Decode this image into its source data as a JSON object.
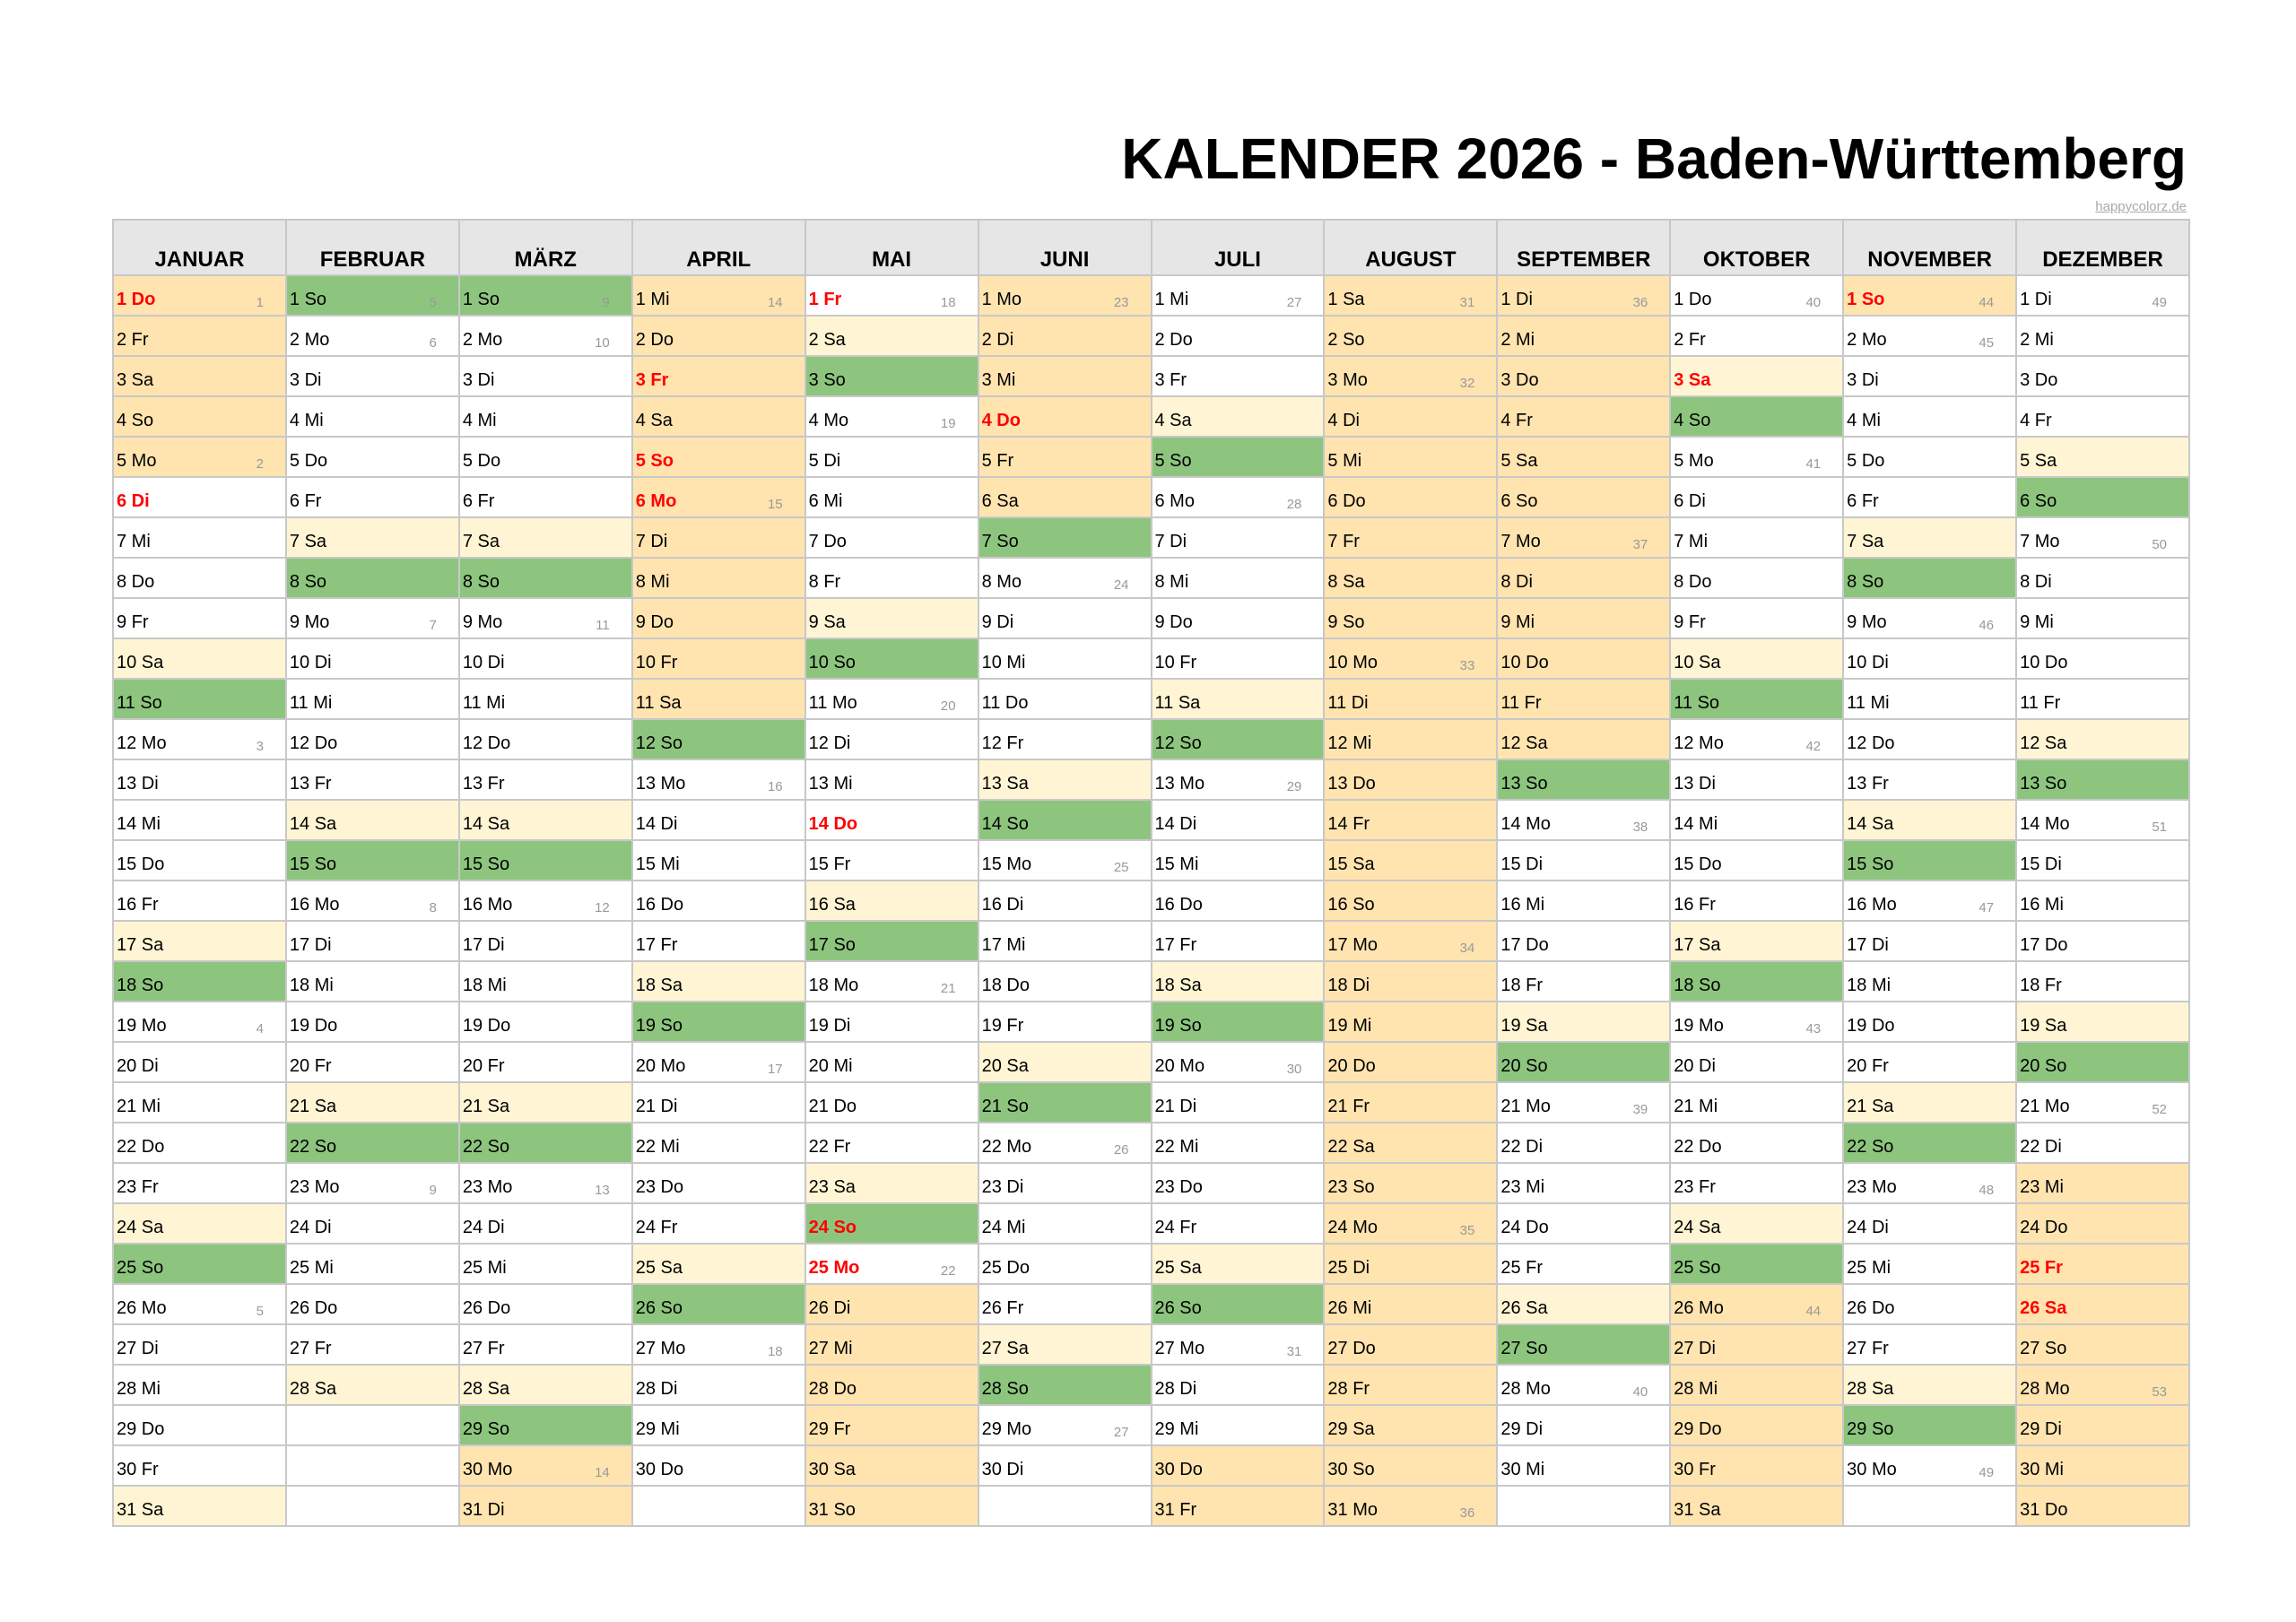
{
  "title": "KALENDER 2026 - Baden-Württemberg",
  "credit": "happycolorz.de",
  "colors": {
    "saturday": "#fff5d4",
    "sunday": "#8dc57e",
    "school_holiday": "#ffe4b0",
    "public_holiday_text": "#ff0000",
    "header": "#e6e6e6"
  },
  "months": [
    {
      "name": "JANUAR",
      "days": [
        "1 Do",
        "2 Fr",
        "3 Sa",
        "4 So",
        "5 Mo",
        "6 Di",
        "7 Mi",
        "8 Do",
        "9 Fr",
        "10 Sa",
        "11 So",
        "12 Mo",
        "13 Di",
        "14 Mi",
        "15 Do",
        "16 Fr",
        "17 Sa",
        "18 So",
        "19 Mo",
        "20 Di",
        "21 Mi",
        "22 Do",
        "23 Fr",
        "24 Sa",
        "25 So",
        "26 Mo",
        "27 Di",
        "28 Mi",
        "29 Do",
        "30 Fr",
        "31 Sa"
      ],
      "week_numbers": {
        "1": "1",
        "5": "2",
        "12": "3",
        "19": "4",
        "26": "5"
      },
      "public_holidays": [
        1,
        6
      ],
      "school_holidays": [
        1,
        2,
        3,
        4,
        5
      ]
    },
    {
      "name": "FEBRUAR",
      "days": [
        "1 So",
        "2 Mo",
        "3 Di",
        "4 Mi",
        "5 Do",
        "6 Fr",
        "7 Sa",
        "8 So",
        "9 Mo",
        "10 Di",
        "11 Mi",
        "12 Do",
        "13 Fr",
        "14 Sa",
        "15 So",
        "16 Mo",
        "17 Di",
        "18 Mi",
        "19 Do",
        "20 Fr",
        "21 Sa",
        "22 So",
        "23 Mo",
        "24 Di",
        "25 Mi",
        "26 Do",
        "27 Fr",
        "28 Sa"
      ],
      "week_numbers": {
        "1": "5",
        "2": "6",
        "9": "7",
        "16": "8",
        "23": "9"
      },
      "public_holidays": [],
      "school_holidays": []
    },
    {
      "name": "MÄRZ",
      "days": [
        "1 So",
        "2 Mo",
        "3 Di",
        "4 Mi",
        "5 Do",
        "6 Fr",
        "7 Sa",
        "8 So",
        "9 Mo",
        "10 Di",
        "11 Mi",
        "12 Do",
        "13 Fr",
        "14 Sa",
        "15 So",
        "16 Mo",
        "17 Di",
        "18 Mi",
        "19 Do",
        "20 Fr",
        "21 Sa",
        "22 So",
        "23 Mo",
        "24 Di",
        "25 Mi",
        "26 Do",
        "27 Fr",
        "28 Sa",
        "29 So",
        "30 Mo",
        "31 Di"
      ],
      "week_numbers": {
        "1": "9",
        "2": "10",
        "9": "11",
        "16": "12",
        "23": "13",
        "30": "14"
      },
      "public_holidays": [],
      "school_holidays": [
        30,
        31
      ]
    },
    {
      "name": "APRIL",
      "days": [
        "1 Mi",
        "2 Do",
        "3 Fr",
        "4 Sa",
        "5 So",
        "6 Mo",
        "7 Di",
        "8 Mi",
        "9 Do",
        "10 Fr",
        "11 Sa",
        "12 So",
        "13 Mo",
        "14 Di",
        "15 Mi",
        "16 Do",
        "17 Fr",
        "18 Sa",
        "19 So",
        "20 Mo",
        "21 Di",
        "22 Mi",
        "23 Do",
        "24 Fr",
        "25 Sa",
        "26 So",
        "27 Mo",
        "28 Di",
        "29 Mi",
        "30 Do"
      ],
      "week_numbers": {
        "1": "14",
        "6": "15",
        "13": "16",
        "20": "17",
        "27": "18"
      },
      "public_holidays": [
        3,
        5,
        6
      ],
      "school_holidays": [
        1,
        2,
        3,
        4,
        5,
        6,
        7,
        8,
        9,
        10,
        11
      ]
    },
    {
      "name": "MAI",
      "days": [
        "1 Fr",
        "2 Sa",
        "3 So",
        "4 Mo",
        "5 Di",
        "6 Mi",
        "7 Do",
        "8 Fr",
        "9 Sa",
        "10 So",
        "11 Mo",
        "12 Di",
        "13 Mi",
        "14 Do",
        "15 Fr",
        "16 Sa",
        "17 So",
        "18 Mo",
        "19 Di",
        "20 Mi",
        "21 Do",
        "22 Fr",
        "23 Sa",
        "24 So",
        "25 Mo",
        "26 Di",
        "27 Mi",
        "28 Do",
        "29 Fr",
        "30 Sa",
        "31 So"
      ],
      "week_numbers": {
        "1": "18",
        "4": "19",
        "11": "20",
        "18": "21",
        "25": "22"
      },
      "public_holidays": [
        1,
        14,
        24,
        25
      ],
      "school_holidays": [
        26,
        27,
        28,
        29,
        30,
        31
      ]
    },
    {
      "name": "JUNI",
      "days": [
        "1 Mo",
        "2 Di",
        "3 Mi",
        "4 Do",
        "5 Fr",
        "6 Sa",
        "7 So",
        "8 Mo",
        "9 Di",
        "10 Mi",
        "11 Do",
        "12 Fr",
        "13 Sa",
        "14 So",
        "15 Mo",
        "16 Di",
        "17 Mi",
        "18 Do",
        "19 Fr",
        "20 Sa",
        "21 So",
        "22 Mo",
        "23 Di",
        "24 Mi",
        "25 Do",
        "26 Fr",
        "27 Sa",
        "28 So",
        "29 Mo",
        "30 Di"
      ],
      "week_numbers": {
        "1": "23",
        "8": "24",
        "15": "25",
        "22": "26",
        "29": "27"
      },
      "public_holidays": [
        4
      ],
      "school_holidays": [
        1,
        2,
        3,
        4,
        5,
        6
      ]
    },
    {
      "name": "JULI",
      "days": [
        "1 Mi",
        "2 Do",
        "3 Fr",
        "4 Sa",
        "5 So",
        "6 Mo",
        "7 Di",
        "8 Mi",
        "9 Do",
        "10 Fr",
        "11 Sa",
        "12 So",
        "13 Mo",
        "14 Di",
        "15 Mi",
        "16 Do",
        "17 Fr",
        "18 Sa",
        "19 So",
        "20 Mo",
        "21 Di",
        "22 Mi",
        "23 Do",
        "24 Fr",
        "25 Sa",
        "26 So",
        "27 Mo",
        "28 Di",
        "29 Mi",
        "30 Do",
        "31 Fr"
      ],
      "week_numbers": {
        "1": "27",
        "6": "28",
        "13": "29",
        "20": "30",
        "27": "31"
      },
      "public_holidays": [],
      "school_holidays": [
        30,
        31
      ]
    },
    {
      "name": "AUGUST",
      "days": [
        "1 Sa",
        "2 So",
        "3 Mo",
        "4 Di",
        "5 Mi",
        "6 Do",
        "7 Fr",
        "8 Sa",
        "9 So",
        "10 Mo",
        "11 Di",
        "12 Mi",
        "13 Do",
        "14 Fr",
        "15 Sa",
        "16 So",
        "17 Mo",
        "18 Di",
        "19 Mi",
        "20 Do",
        "21 Fr",
        "22 Sa",
        "23 So",
        "24 Mo",
        "25 Di",
        "26 Mi",
        "27 Do",
        "28 Fr",
        "29 Sa",
        "30 So",
        "31 Mo"
      ],
      "week_numbers": {
        "1": "31",
        "3": "32",
        "10": "33",
        "17": "34",
        "24": "35",
        "31": "36"
      },
      "public_holidays": [],
      "school_holidays": [
        1,
        2,
        3,
        4,
        5,
        6,
        7,
        8,
        9,
        10,
        11,
        12,
        13,
        14,
        15,
        16,
        17,
        18,
        19,
        20,
        21,
        22,
        23,
        24,
        25,
        26,
        27,
        28,
        29,
        30,
        31
      ]
    },
    {
      "name": "SEPTEMBER",
      "days": [
        "1 Di",
        "2 Mi",
        "3 Do",
        "4 Fr",
        "5 Sa",
        "6 So",
        "7 Mo",
        "8 Di",
        "9 Mi",
        "10 Do",
        "11 Fr",
        "12 Sa",
        "13 So",
        "14 Mo",
        "15 Di",
        "16 Mi",
        "17 Do",
        "18 Fr",
        "19 Sa",
        "20 So",
        "21 Mo",
        "22 Di",
        "23 Mi",
        "24 Do",
        "25 Fr",
        "26 Sa",
        "27 So",
        "28 Mo",
        "29 Di",
        "30 Mi"
      ],
      "week_numbers": {
        "1": "36",
        "7": "37",
        "14": "38",
        "21": "39",
        "28": "40"
      },
      "public_holidays": [],
      "school_holidays": [
        1,
        2,
        3,
        4,
        5,
        6,
        7,
        8,
        9,
        10,
        11,
        12
      ]
    },
    {
      "name": "OKTOBER",
      "days": [
        "1 Do",
        "2 Fr",
        "3 Sa",
        "4 So",
        "5 Mo",
        "6 Di",
        "7 Mi",
        "8 Do",
        "9 Fr",
        "10 Sa",
        "11 So",
        "12 Mo",
        "13 Di",
        "14 Mi",
        "15 Do",
        "16 Fr",
        "17 Sa",
        "18 So",
        "19 Mo",
        "20 Di",
        "21 Mi",
        "22 Do",
        "23 Fr",
        "24 Sa",
        "25 So",
        "26 Mo",
        "27 Di",
        "28 Mi",
        "29 Do",
        "30 Fr",
        "31 Sa"
      ],
      "week_numbers": {
        "1": "40",
        "5": "41",
        "12": "42",
        "19": "43",
        "26": "44"
      },
      "public_holidays": [
        3
      ],
      "school_holidays": [
        26,
        27,
        28,
        29,
        30,
        31
      ]
    },
    {
      "name": "NOVEMBER",
      "days": [
        "1 So",
        "2 Mo",
        "3 Di",
        "4 Mi",
        "5 Do",
        "6 Fr",
        "7 Sa",
        "8 So",
        "9 Mo",
        "10 Di",
        "11 Mi",
        "12 Do",
        "13 Fr",
        "14 Sa",
        "15 So",
        "16 Mo",
        "17 Di",
        "18 Mi",
        "19 Do",
        "20 Fr",
        "21 Sa",
        "22 So",
        "23 Mo",
        "24 Di",
        "25 Mi",
        "26 Do",
        "27 Fr",
        "28 Sa",
        "29 So",
        "30 Mo"
      ],
      "week_numbers": {
        "1": "44",
        "2": "45",
        "9": "46",
        "16": "47",
        "23": "48",
        "30": "49"
      },
      "public_holidays": [
        1
      ],
      "school_holidays": [
        1
      ]
    },
    {
      "name": "DEZEMBER",
      "days": [
        "1 Di",
        "2 Mi",
        "3 Do",
        "4 Fr",
        "5 Sa",
        "6 So",
        "7 Mo",
        "8 Di",
        "9 Mi",
        "10 Do",
        "11 Fr",
        "12 Sa",
        "13 So",
        "14 Mo",
        "15 Di",
        "16 Mi",
        "17 Do",
        "18 Fr",
        "19 Sa",
        "20 So",
        "21 Mo",
        "22 Di",
        "23 Mi",
        "24 Do",
        "25 Fr",
        "26 Sa",
        "27 So",
        "28 Mo",
        "29 Di",
        "30 Mi",
        "31 Do"
      ],
      "week_numbers": {
        "1": "49",
        "7": "50",
        "14": "51",
        "21": "52",
        "28": "53"
      },
      "public_holidays": [
        25,
        26
      ],
      "school_holidays": [
        23,
        24,
        25,
        26,
        27,
        28,
        29,
        30,
        31
      ]
    }
  ]
}
